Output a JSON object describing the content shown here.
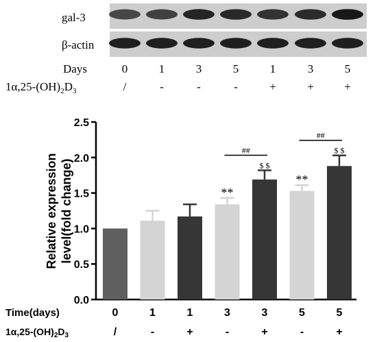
{
  "blot": {
    "bands": [
      {
        "label": "gal-3",
        "intensity": [
          0.72,
          0.75,
          0.86,
          0.84,
          0.8,
          0.83,
          0.9
        ]
      },
      {
        "label": "β-actin",
        "intensity": [
          0.88,
          0.88,
          0.88,
          0.88,
          0.88,
          0.88,
          0.88
        ]
      }
    ],
    "days_label": "Days",
    "days": [
      "0",
      "1",
      "3",
      "5",
      "1",
      "3",
      "5"
    ],
    "treatment_label_base": "1α,25-(OH)",
    "treatment_label_sub": "2",
    "treatment_label_d": "D",
    "treatment_label_sub2": "3",
    "treatment": [
      "/",
      "-",
      "-",
      "-",
      "+",
      "+",
      "+"
    ]
  },
  "chart_data": {
    "type": "bar",
    "categories": [
      "0",
      "1",
      "1",
      "3",
      "3",
      "5",
      "5"
    ],
    "treatment": [
      "/",
      "-",
      "+",
      "-",
      "+",
      "-",
      "+"
    ],
    "values": [
      1.0,
      1.11,
      1.17,
      1.34,
      1.69,
      1.53,
      1.88
    ],
    "errors": [
      0.0,
      0.14,
      0.17,
      0.09,
      0.13,
      0.08,
      0.15
    ],
    "bar_colors": [
      "#5f5f5f",
      "#d4d4d4",
      "#363636",
      "#d4d4d4",
      "#363636",
      "#d4d4d4",
      "#363636"
    ],
    "ylabel_line1": "Relative expression",
    "ylabel_line2": "level(fold change)",
    "ylim": [
      0,
      2.5
    ],
    "yticks": [
      "0.0",
      "0.5",
      "1.0",
      "1.5",
      "2.0",
      "2.5"
    ],
    "ytick_values": [
      0,
      0.5,
      1.0,
      1.5,
      2.0,
      2.5
    ],
    "xlabel_row1": "Time(days)",
    "xlabel_row2_base": "1α,25-(OH)",
    "xlabel_row2_sub": "2",
    "xlabel_row2_d": "D",
    "xlabel_row2_sub2": "3",
    "annotations": {
      "star": "**",
      "dollar": "$ $",
      "hash": "##"
    },
    "star_bars": [
      3,
      5
    ],
    "dollar_bars": [
      4,
      6
    ],
    "hash_pairs": [
      [
        3,
        4
      ],
      [
        5,
        6
      ]
    ]
  }
}
